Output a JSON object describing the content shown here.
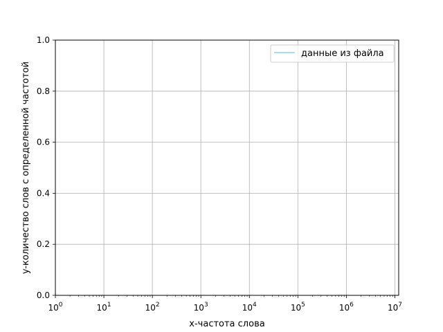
{
  "chart_data": {
    "type": "line",
    "title": "",
    "xlabel": "x-частота слова",
    "ylabel": "y-количество слов с определенной частотой",
    "xscale": "log",
    "xlim": [
      1,
      12000000
    ],
    "ylim": [
      0,
      1
    ],
    "x_ticks": [
      {
        "value": 1,
        "base": "10",
        "exp": "0"
      },
      {
        "value": 10,
        "base": "10",
        "exp": "1"
      },
      {
        "value": 100,
        "base": "10",
        "exp": "2"
      },
      {
        "value": 1000,
        "base": "10",
        "exp": "3"
      },
      {
        "value": 10000,
        "base": "10",
        "exp": "4"
      },
      {
        "value": 100000,
        "base": "10",
        "exp": "5"
      },
      {
        "value": 1000000,
        "base": "10",
        "exp": "6"
      },
      {
        "value": 10000000,
        "base": "10",
        "exp": "7"
      }
    ],
    "y_ticks": [
      {
        "value": 0,
        "label": "0.0"
      },
      {
        "value": 0.2,
        "label": "0.2"
      },
      {
        "value": 0.4,
        "label": "0.4"
      },
      {
        "value": 0.6,
        "label": "0.6"
      },
      {
        "value": 0.8,
        "label": "0.8"
      },
      {
        "value": 1.0,
        "label": "1.0"
      }
    ],
    "grid": true,
    "legend_position": "upper right",
    "series": [
      {
        "name": "данные из файла",
        "color": "#87cefa",
        "x": [],
        "y": []
      }
    ]
  }
}
